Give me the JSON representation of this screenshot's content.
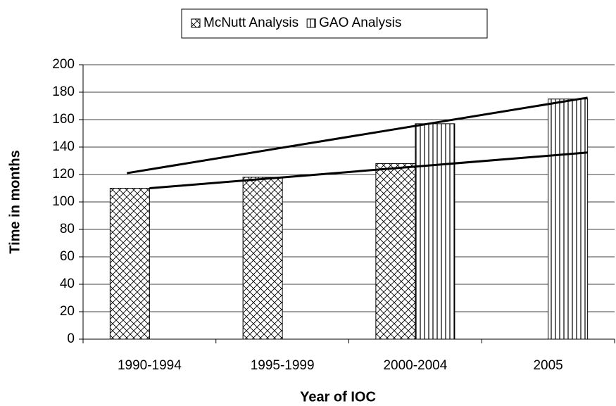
{
  "chart_data": {
    "type": "bar",
    "x_label": "Year of IOC",
    "y_label": "Time in months",
    "categories": [
      "1990-1994",
      "1995-1999",
      "2000-2004",
      "2005"
    ],
    "series": [
      {
        "name": "McNutt Analysis",
        "color": "#000000",
        "pattern": "crosshatch",
        "values": [
          110,
          118,
          128,
          null
        ]
      },
      {
        "name": "GAO Analysis",
        "color": "#000000",
        "pattern": "vertical",
        "values": [
          null,
          null,
          157,
          175
        ]
      }
    ],
    "trend_lines": [
      {
        "color": "#000000",
        "values": [
          121,
          176
        ]
      },
      {
        "color": "#000000",
        "values": [
          110,
          136
        ]
      }
    ],
    "ylim": [
      0,
      200
    ],
    "yticks": [
      0,
      20,
      40,
      60,
      80,
      100,
      120,
      140,
      160,
      180,
      200
    ],
    "grid": true,
    "legend": "top"
  }
}
